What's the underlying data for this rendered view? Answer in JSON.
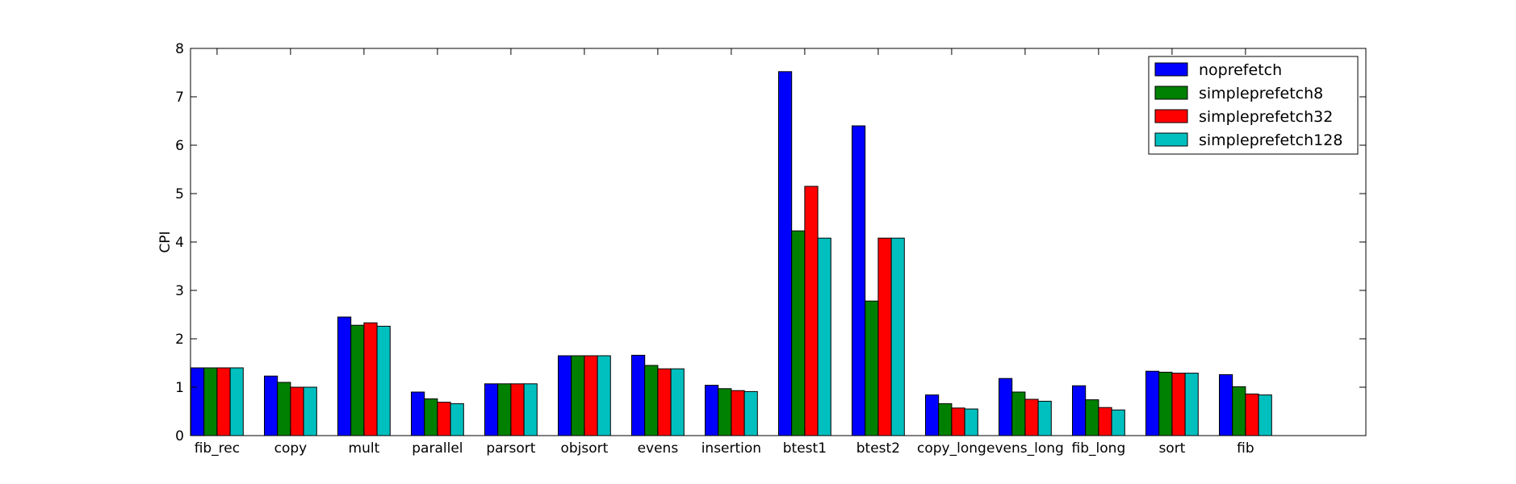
{
  "chart_data": {
    "type": "bar",
    "title": "",
    "xlabel": "",
    "ylabel": "CPI",
    "ylim": [
      0,
      8
    ],
    "yticks": [
      0,
      1,
      2,
      3,
      4,
      5,
      6,
      7,
      8
    ],
    "grid": false,
    "legend_position": "top-right",
    "categories": [
      "fib_rec",
      "copy",
      "mult",
      "parallel",
      "parsort",
      "objsort",
      "evens",
      "insertion",
      "btest1",
      "btest2",
      "copy_long",
      "evens_long",
      "fib_long",
      "sort",
      "fib"
    ],
    "series": [
      {
        "name": "noprefetch",
        "color": "#0000ff",
        "values": [
          1.4,
          1.23,
          2.45,
          0.9,
          1.07,
          1.65,
          1.66,
          1.04,
          7.52,
          6.4,
          0.84,
          1.18,
          1.03,
          1.33,
          1.26
        ]
      },
      {
        "name": "simpleprefetch8",
        "color": "#008000",
        "values": [
          1.4,
          1.1,
          2.28,
          0.76,
          1.07,
          1.65,
          1.45,
          0.97,
          4.23,
          2.78,
          0.66,
          0.9,
          0.74,
          1.31,
          1.01
        ]
      },
      {
        "name": "simpleprefetch32",
        "color": "#ff0000",
        "values": [
          1.4,
          1.0,
          2.33,
          0.69,
          1.07,
          1.65,
          1.38,
          0.93,
          5.15,
          4.08,
          0.57,
          0.75,
          0.58,
          1.29,
          0.86
        ]
      },
      {
        "name": "simpleprefetch128",
        "color": "#00bfbf",
        "values": [
          1.4,
          1.0,
          2.26,
          0.66,
          1.07,
          1.65,
          1.38,
          0.91,
          4.08,
          4.08,
          0.55,
          0.71,
          0.53,
          1.29,
          0.84
        ]
      }
    ]
  }
}
